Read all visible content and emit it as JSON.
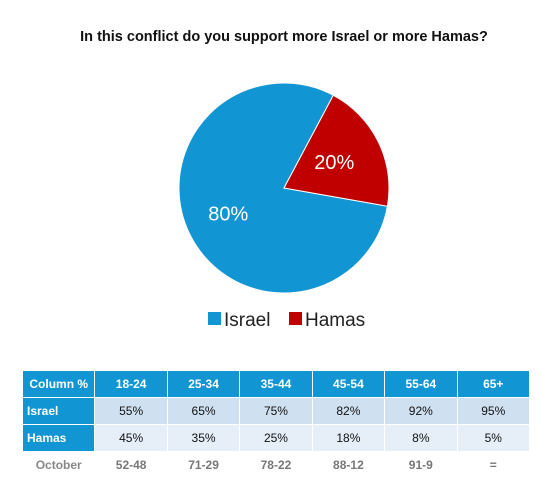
{
  "chart_data": [
    {
      "type": "pie",
      "title": "In this conflict do you support more Israel or more Hamas?",
      "series": [
        {
          "name": "Israel",
          "value": 80,
          "label": "80%",
          "color": "#1296d3"
        },
        {
          "name": "Hamas",
          "value": 20,
          "label": "20%",
          "color": "#c00000"
        }
      ],
      "legend_position": "bottom"
    },
    {
      "type": "table",
      "columns": [
        "Column %",
        "18-24",
        "25-34",
        "35-44",
        "45-54",
        "55-64",
        "65+"
      ],
      "rows": [
        {
          "label": "Israel",
          "values": [
            "55%",
            "65%",
            "75%",
            "82%",
            "92%",
            "95%"
          ]
        },
        {
          "label": "Hamas",
          "values": [
            "45%",
            "35%",
            "25%",
            "18%",
            "8%",
            "5%"
          ]
        },
        {
          "label": "October",
          "values": [
            "52-48",
            "71-29",
            "78-22",
            "88-12",
            "91-9",
            "="
          ]
        }
      ]
    }
  ],
  "colors": {
    "accent": "#1296d3",
    "hamas": "#c00000",
    "row_light": "#cfe0f1",
    "row_lighter": "#e6eff8"
  }
}
